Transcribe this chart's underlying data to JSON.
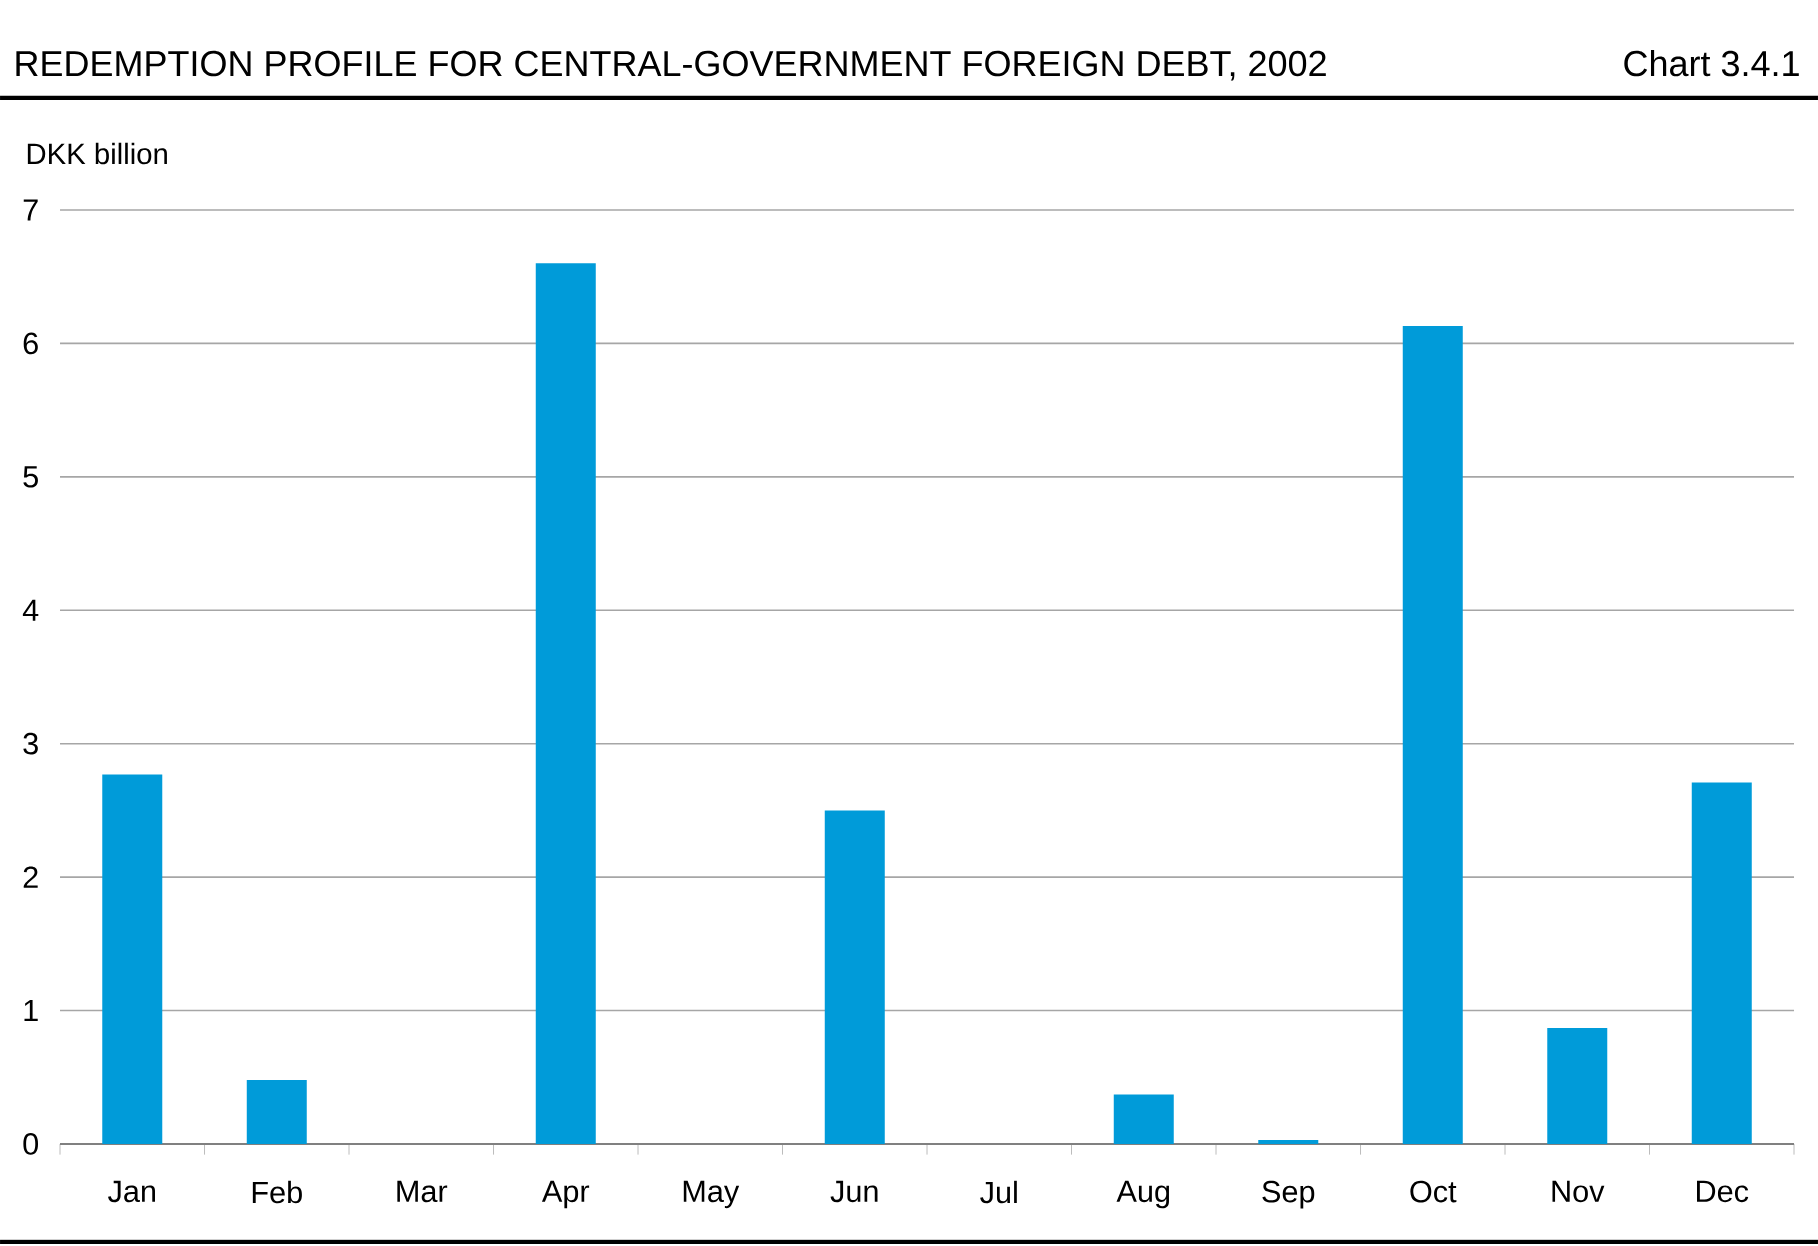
{
  "chart_data": {
    "type": "bar",
    "title": "REDEMPTION PROFILE FOR CENTRAL-GOVERNMENT FOREIGN DEBT, 2002",
    "annotations": [
      "Chart 3.4.1"
    ],
    "ylabel": "DKK billion",
    "categories": [
      "Jan",
      "Feb",
      "Mar",
      "Apr",
      "May",
      "Jun",
      "Jul",
      "Aug",
      "Sep",
      "Oct",
      "Nov",
      "Dec"
    ],
    "values": [
      2.77,
      0.48,
      0,
      6.6,
      0,
      2.5,
      0,
      0.37,
      0.03,
      6.13,
      0.87,
      2.71
    ],
    "color": "#009bd9",
    "ylim": [
      0,
      7
    ],
    "yticks": [
      0,
      1,
      2,
      3,
      4,
      5,
      6,
      7
    ],
    "grid": "y"
  }
}
